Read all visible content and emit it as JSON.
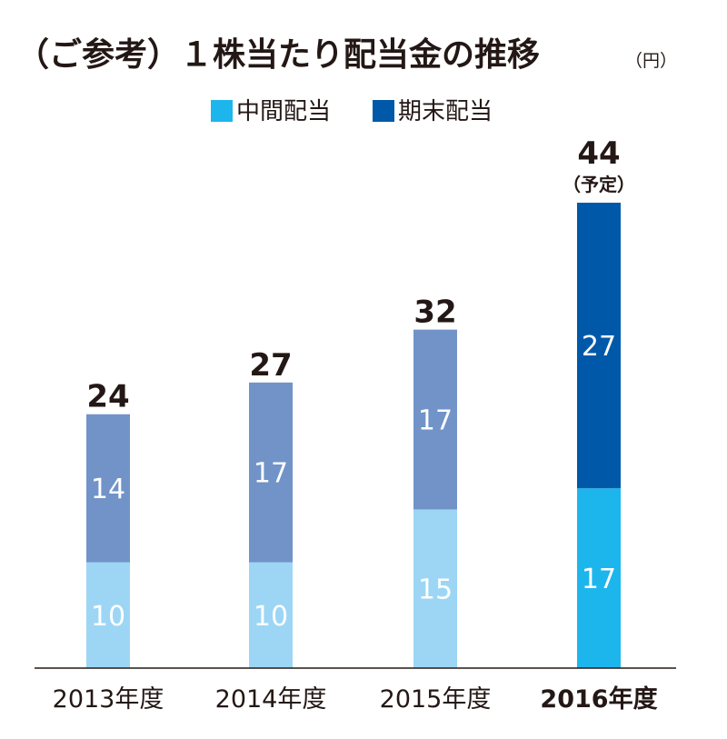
{
  "chart_data": {
    "type": "bar",
    "stacked": true,
    "title": "（ご参考）１株当たり配当金の推移",
    "unit": "（円）",
    "categories": [
      "2013年度",
      "2014年度",
      "2015年度",
      "2016年度"
    ],
    "series": [
      {
        "name": "中間配当",
        "values": [
          10,
          10,
          15,
          17
        ]
      },
      {
        "name": "期末配当",
        "values": [
          14,
          17,
          17,
          27
        ]
      }
    ],
    "totals": [
      24,
      27,
      32,
      44
    ],
    "total_notes": [
      "",
      "",
      "",
      "（予定）"
    ],
    "ylim": [
      0,
      44
    ],
    "grid": false,
    "legend_position": "top-center",
    "highlight_category": "2016年度",
    "colors": {
      "interim": "#9dd6f5",
      "year_end": "#7193c8",
      "interim_highlight": "#1db6ec",
      "year_end_highlight": "#0059a8",
      "text": "#231815",
      "segment_label": "#ffffff"
    }
  }
}
